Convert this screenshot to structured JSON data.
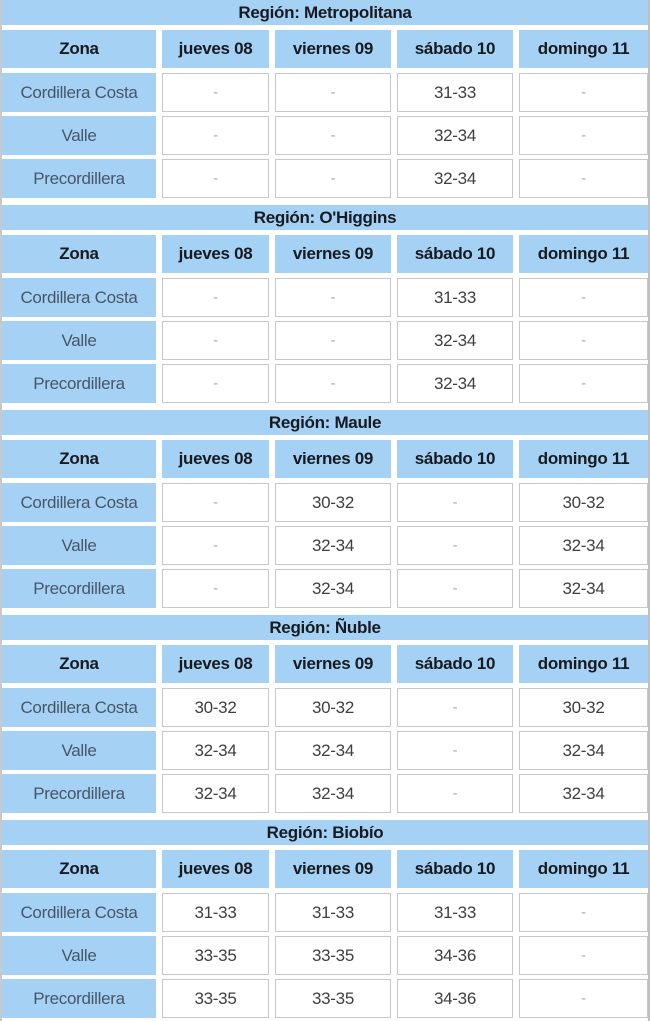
{
  "colors": {
    "cell_blue": "#a5d2f4",
    "header_text": "#171a21",
    "zone_text": "#46566a",
    "value_text": "#3f3f3f",
    "dash_text": "#a8a8a8",
    "cell_border": "#c8c8c8"
  },
  "chart_data": [
    {
      "type": "table",
      "title": "Región: Metropolitana",
      "columns": [
        "Zona",
        "jueves 08",
        "viernes 09",
        "sábado 10",
        "domingo 11"
      ],
      "rows": [
        [
          "Cordillera Costa",
          "-",
          "-",
          "31-33",
          "-"
        ],
        [
          "Valle",
          "-",
          "-",
          "32-34",
          "-"
        ],
        [
          "Precordillera",
          "-",
          "-",
          "32-34",
          "-"
        ]
      ]
    },
    {
      "type": "table",
      "title": "Región: O'Higgins",
      "columns": [
        "Zona",
        "jueves 08",
        "viernes 09",
        "sábado 10",
        "domingo 11"
      ],
      "rows": [
        [
          "Cordillera Costa",
          "-",
          "-",
          "31-33",
          "-"
        ],
        [
          "Valle",
          "-",
          "-",
          "32-34",
          "-"
        ],
        [
          "Precordillera",
          "-",
          "-",
          "32-34",
          "-"
        ]
      ]
    },
    {
      "type": "table",
      "title": "Región: Maule",
      "columns": [
        "Zona",
        "jueves 08",
        "viernes 09",
        "sábado 10",
        "domingo 11"
      ],
      "rows": [
        [
          "Cordillera Costa",
          "-",
          "30-32",
          "-",
          "30-32"
        ],
        [
          "Valle",
          "-",
          "32-34",
          "-",
          "32-34"
        ],
        [
          "Precordillera",
          "-",
          "32-34",
          "-",
          "32-34"
        ]
      ]
    },
    {
      "type": "table",
      "title": "Región: Ñuble",
      "columns": [
        "Zona",
        "jueves 08",
        "viernes 09",
        "sábado 10",
        "domingo 11"
      ],
      "rows": [
        [
          "Cordillera Costa",
          "30-32",
          "30-32",
          "-",
          "30-32"
        ],
        [
          "Valle",
          "32-34",
          "32-34",
          "-",
          "32-34"
        ],
        [
          "Precordillera",
          "32-34",
          "32-34",
          "-",
          "32-34"
        ]
      ]
    },
    {
      "type": "table",
      "title": "Región: Biobío",
      "columns": [
        "Zona",
        "jueves 08",
        "viernes 09",
        "sábado 10",
        "domingo 11"
      ],
      "rows": [
        [
          "Cordillera Costa",
          "31-33",
          "31-33",
          "31-33",
          "-"
        ],
        [
          "Valle",
          "33-35",
          "33-35",
          "34-36",
          "-"
        ],
        [
          "Precordillera",
          "33-35",
          "33-35",
          "34-36",
          "-"
        ]
      ]
    }
  ]
}
